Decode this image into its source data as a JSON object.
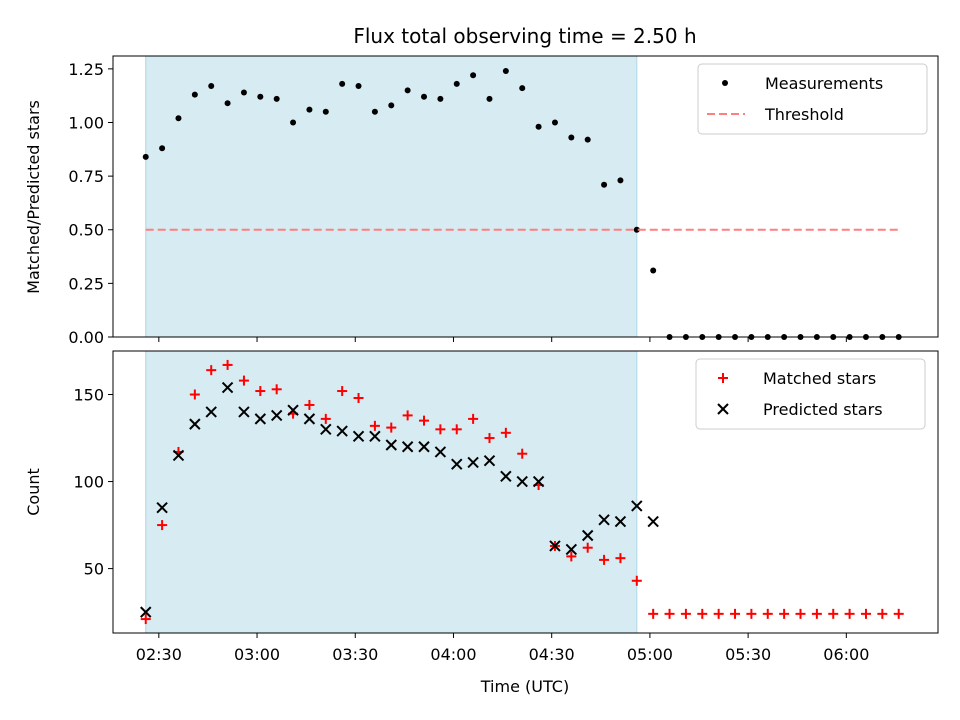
{
  "chart_data": [
    {
      "id": "ratio",
      "type": "scatter",
      "title": "Flux total observing time = 2.50 h",
      "xlabel": "",
      "ylabel": "Matched/Predicted stars",
      "ylim": [
        0,
        1.31
      ],
      "yticks": [
        0,
        0.25,
        0.5,
        0.75,
        1.0,
        1.25
      ],
      "ytick_labels": [
        "0.00",
        "0.25",
        "0.50",
        "0.75",
        "1.00",
        "1.25"
      ],
      "xlim": [
        "02:16",
        "06:28"
      ],
      "shaded_span": [
        "02:26",
        "04:56"
      ],
      "series": [
        {
          "name": "Measurements",
          "marker": "dot",
          "color": "#000000",
          "x": [
            "02:26",
            "02:31",
            "02:36",
            "02:41",
            "02:46",
            "02:51",
            "02:56",
            "03:01",
            "03:06",
            "03:11",
            "03:16",
            "03:21",
            "03:26",
            "03:31",
            "03:36",
            "03:41",
            "03:46",
            "03:51",
            "03:56",
            "04:01",
            "04:06",
            "04:11",
            "04:16",
            "04:21",
            "04:26",
            "04:31",
            "04:36",
            "04:41",
            "04:46",
            "04:51",
            "04:56",
            "05:01",
            "05:06",
            "05:11",
            "05:16",
            "05:21",
            "05:26",
            "05:31",
            "05:36",
            "05:41",
            "05:46",
            "05:51",
            "05:56",
            "06:01",
            "06:06",
            "06:11",
            "06:16"
          ],
          "y": [
            0.84,
            0.88,
            1.02,
            1.13,
            1.17,
            1.09,
            1.14,
            1.12,
            1.11,
            1.0,
            1.06,
            1.05,
            1.18,
            1.17,
            1.05,
            1.08,
            1.15,
            1.12,
            1.11,
            1.18,
            1.22,
            1.11,
            1.24,
            1.16,
            0.98,
            1.0,
            0.93,
            0.92,
            0.71,
            0.73,
            0.5,
            0.31,
            0,
            0,
            0,
            0,
            0,
            0,
            0,
            0,
            0,
            0,
            0,
            0,
            0,
            0,
            0
          ]
        },
        {
          "name": "Threshold",
          "type": "line",
          "dash": "dashed",
          "color": "#ff7f7f",
          "x": [
            "02:26",
            "06:16"
          ],
          "y": [
            0.5,
            0.5
          ]
        }
      ],
      "legend": "top-right"
    },
    {
      "id": "count",
      "type": "scatter",
      "title": "",
      "xlabel": "Time (UTC)",
      "ylabel": "Count",
      "ylim": [
        13,
        175
      ],
      "yticks": [
        50,
        100,
        150
      ],
      "ytick_labels": [
        "50",
        "100",
        "150"
      ],
      "xlim": [
        "02:16",
        "06:28"
      ],
      "xticks": [
        "02:30",
        "03:00",
        "03:30",
        "04:00",
        "04:30",
        "05:00",
        "05:30",
        "06:00"
      ],
      "shaded_span": [
        "02:26",
        "04:56"
      ],
      "series": [
        {
          "name": "Matched stars",
          "marker": "plus",
          "color": "#ff0000",
          "x": [
            "02:26",
            "02:31",
            "02:36",
            "02:41",
            "02:46",
            "02:51",
            "02:56",
            "03:01",
            "03:06",
            "03:11",
            "03:16",
            "03:21",
            "03:26",
            "03:31",
            "03:36",
            "03:41",
            "03:46",
            "03:51",
            "03:56",
            "04:01",
            "04:06",
            "04:11",
            "04:16",
            "04:21",
            "04:26",
            "04:31",
            "04:36",
            "04:41",
            "04:46",
            "04:51",
            "04:56",
            "05:01",
            "05:06",
            "05:11",
            "05:16",
            "05:21",
            "05:26",
            "05:31",
            "05:36",
            "05:41",
            "05:46",
            "05:51",
            "05:56",
            "06:01",
            "06:06",
            "06:11",
            "06:16"
          ],
          "y": [
            21,
            75,
            117,
            150,
            164,
            167,
            158,
            152,
            153,
            139,
            144,
            136,
            152,
            148,
            132,
            131,
            138,
            135,
            130,
            130,
            136,
            125,
            128,
            116,
            98,
            63,
            57,
            62,
            55,
            56,
            43,
            24,
            24,
            24,
            24,
            24,
            24,
            24,
            24,
            24,
            24,
            24,
            24,
            24,
            24,
            24,
            24
          ]
        },
        {
          "name": "Predicted stars",
          "marker": "x",
          "color": "#000000",
          "x": [
            "02:26",
            "02:31",
            "02:36",
            "02:41",
            "02:46",
            "02:51",
            "02:56",
            "03:01",
            "03:06",
            "03:11",
            "03:16",
            "03:21",
            "03:26",
            "03:31",
            "03:36",
            "03:41",
            "03:46",
            "03:51",
            "03:56",
            "04:01",
            "04:06",
            "04:11",
            "04:16",
            "04:21",
            "04:26",
            "04:31",
            "04:36",
            "04:41",
            "04:46",
            "04:51",
            "04:56",
            "05:01"
          ],
          "y": [
            25,
            85,
            115,
            133,
            140,
            154,
            140,
            136,
            138,
            141,
            136,
            130,
            129,
            126,
            126,
            121,
            120,
            120,
            117,
            110,
            111,
            112,
            103,
            100,
            100,
            63,
            61,
            69,
            78,
            77,
            86,
            77
          ]
        }
      ],
      "legend": "top-right"
    }
  ]
}
